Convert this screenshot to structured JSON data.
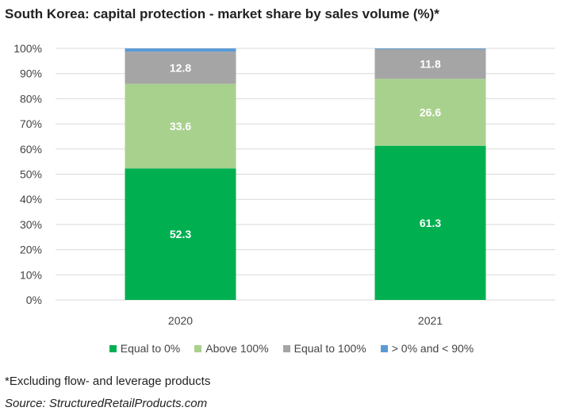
{
  "title": "South Korea: capital protection - market share by sales volume (%)*",
  "footnote": "*Excluding flow- and leverage products",
  "source": "Source: StructuredRetailProducts.com",
  "chart_data": {
    "type": "bar",
    "stacked": true,
    "categories": [
      "2020",
      "2021"
    ],
    "series": [
      {
        "name": "Equal to 0%",
        "color": "#00b050",
        "values": [
          52.3,
          61.3
        ],
        "labels": [
          "52.3",
          "61.3"
        ]
      },
      {
        "name": "Above 100%",
        "color": "#a9d18e",
        "values": [
          33.6,
          26.6
        ],
        "labels": [
          "33.6",
          "26.6"
        ]
      },
      {
        "name": "Equal to 100%",
        "color": "#a5a5a5",
        "values": [
          12.8,
          11.8
        ],
        "labels": [
          "12.8",
          "11.8"
        ]
      },
      {
        "name": "> 0% and < 90%",
        "color": "#5b9bd5",
        "values": [
          1.3,
          0.3
        ],
        "labels": [
          "",
          ""
        ]
      }
    ],
    "ylim": [
      0,
      100
    ],
    "yticks": [
      "0%",
      "10%",
      "20%",
      "30%",
      "40%",
      "50%",
      "60%",
      "70%",
      "80%",
      "90%",
      "100%"
    ],
    "grid": true,
    "legend_position": "bottom"
  }
}
